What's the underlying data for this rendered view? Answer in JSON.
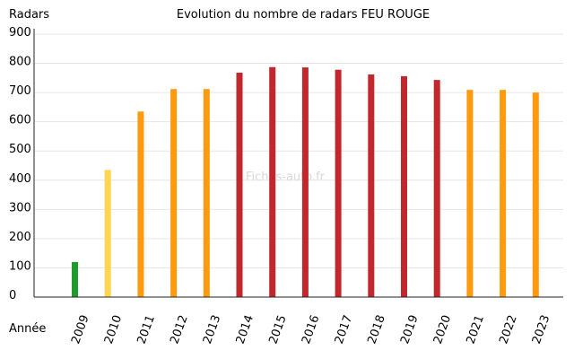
{
  "chart_data": {
    "type": "bar",
    "title": "Evolution du nombre de radars FEU ROUGE",
    "ylabel": "Radars",
    "xlabel": "Année",
    "categories": [
      "2009",
      "2010",
      "2011",
      "2012",
      "2013",
      "2014",
      "2015",
      "2016",
      "2017",
      "2018",
      "2019",
      "2020",
      "2021",
      "2022",
      "2023"
    ],
    "values": [
      120,
      435,
      635,
      712,
      712,
      768,
      787,
      786,
      778,
      762,
      756,
      743,
      709,
      709,
      700
    ],
    "colors": [
      "#1e9a2e",
      "#ffd54f",
      "#ff9a0f",
      "#ff9a0f",
      "#ff9a0f",
      "#c1272d",
      "#c1272d",
      "#c1272d",
      "#c1272d",
      "#c1272d",
      "#c1272d",
      "#c1272d",
      "#ff9a0f",
      "#ff9a0f",
      "#ff9a0f"
    ],
    "ylim": [
      0,
      900
    ],
    "yticks": [
      0,
      100,
      200,
      300,
      400,
      500,
      600,
      700,
      800,
      900
    ],
    "grid": true,
    "watermark": "Fiches-auto.fr"
  }
}
